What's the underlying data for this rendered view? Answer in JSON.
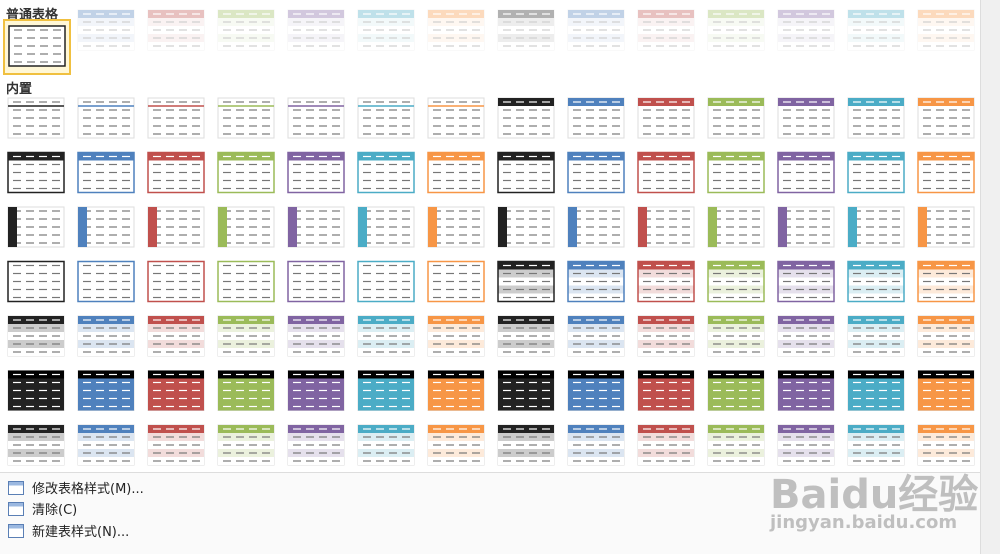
{
  "gallery": {
    "plain_section": "普通表格",
    "builtin_section": "内置"
  },
  "menu": {
    "items": [
      "修改表格样式(M)...",
      "清除(C)",
      "新建表样式(N)..."
    ]
  },
  "watermark": {
    "brand": "Baidu经验",
    "url": "jingyan.baidu.com"
  }
}
